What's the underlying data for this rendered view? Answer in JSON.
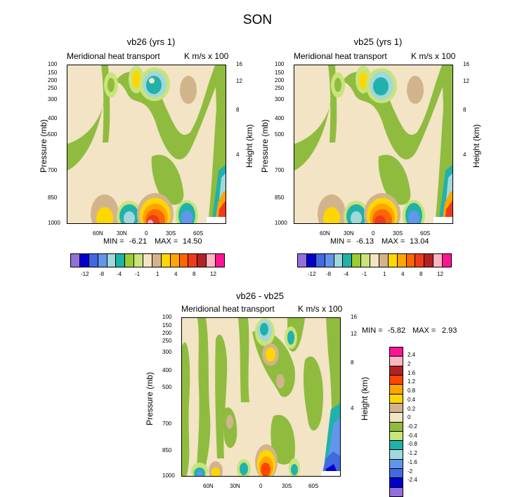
{
  "title": "SON",
  "chart_data": [
    {
      "type": "heatmap",
      "title": "vb26 (yrs 1)",
      "left_string": "Meridional heat transport",
      "right_string": "K m/s x 100",
      "ylabel": "Pressure (mb)",
      "ylabel_right": "Height (km)",
      "yticks": [
        "100",
        "150",
        "200",
        "250",
        "300",
        "400",
        "500",
        "700",
        "850",
        "1000"
      ],
      "yticks_right": [
        "16",
        "12",
        "8",
        "4"
      ],
      "xticks": [
        "60N",
        "30N",
        "0",
        "30S",
        "60S"
      ],
      "min_label": "MIN =",
      "min_value": "-6.21",
      "max_label": "MAX =",
      "max_value": "14.50",
      "levels": [
        "-12",
        "-8",
        "-4",
        "-1",
        "1",
        "4",
        "8",
        "12"
      ]
    },
    {
      "type": "heatmap",
      "title": "vb25 (yrs 1)",
      "left_string": "Meridional heat transport",
      "right_string": "K m/s x 100",
      "ylabel": "Pressure (mb)",
      "ylabel_right": "Height (km)",
      "yticks": [
        "100",
        "150",
        "200",
        "250",
        "300",
        "400",
        "500",
        "700",
        "850",
        "1000"
      ],
      "yticks_right": [
        "16",
        "12",
        "8",
        "4"
      ],
      "xticks": [
        "60N",
        "30N",
        "0",
        "30S",
        "60S"
      ],
      "min_label": "MIN =",
      "min_value": "-6.13",
      "max_label": "MAX =",
      "max_value": "13.04",
      "levels": [
        "-12",
        "-8",
        "-4",
        "-1",
        "1",
        "4",
        "8",
        "12"
      ]
    },
    {
      "type": "heatmap",
      "title": "vb26 - vb25",
      "left_string": "Meridional heat transport",
      "right_string": "K m/s x 100",
      "ylabel": "Pressure (mb)",
      "ylabel_right": "Height (km)",
      "yticks": [
        "100",
        "150",
        "200",
        "250",
        "300",
        "400",
        "500",
        "700",
        "850",
        "1000"
      ],
      "yticks_right": [
        "16",
        "12",
        "8",
        "4"
      ],
      "xticks": [
        "60N",
        "30N",
        "0",
        "30S",
        "60S"
      ],
      "min_label": "MIN =",
      "min_value": "-5.82",
      "max_label": "MAX =",
      "max_value": "2.93",
      "levels": [
        "2.4",
        "2",
        "1.6",
        "1.2",
        "0.8",
        "0.4",
        "0.2",
        "0",
        "-0.2",
        "-0.4",
        "-0.8",
        "-1.2",
        "-1.6",
        "-2",
        "-2.4"
      ]
    }
  ],
  "colors": {
    "main_bar": [
      "#9370db",
      "#0000cd",
      "#4169e1",
      "#6495ed",
      "#a0d8dc",
      "#20b2aa",
      "#9acd32",
      "#c8e47a",
      "#f2e4c4",
      "#d2b48c",
      "#ffd700",
      "#ffa500",
      "#ff6600",
      "#ee3b1b",
      "#b22222",
      "#ffb6c1",
      "#ff1493"
    ],
    "diff_bar": [
      "#ff1493",
      "#ffb6c1",
      "#b22222",
      "#ff4500",
      "#ffa500",
      "#ffd700",
      "#d2b48c",
      "#f2e4c4",
      "#8fbc3f",
      "#c8e47a",
      "#20b2aa",
      "#a0d8dc",
      "#6495ed",
      "#4169e1",
      "#0000cd",
      "#9370db"
    ]
  }
}
